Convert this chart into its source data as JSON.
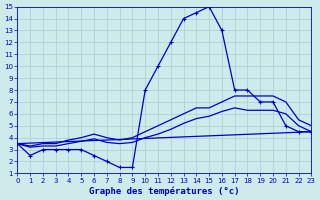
{
  "xlabel": "Graphe des températures (°c)",
  "background_color": "#ceeaea",
  "grid_color": "#aacccc",
  "line_color": "#0000cc",
  "xlim": [
    0,
    23
  ],
  "ylim": [
    1,
    15
  ],
  "xticks": [
    0,
    1,
    2,
    3,
    4,
    5,
    6,
    7,
    8,
    9,
    10,
    11,
    12,
    13,
    14,
    15,
    16,
    17,
    18,
    19,
    20,
    21,
    22,
    23
  ],
  "yticks": [
    1,
    2,
    3,
    4,
    5,
    6,
    7,
    8,
    9,
    10,
    11,
    12,
    13,
    14,
    15
  ],
  "series": [
    {
      "x": [
        0,
        1,
        2,
        3,
        4,
        5,
        6,
        7,
        8,
        9,
        10,
        11,
        12,
        13,
        14,
        15,
        16,
        17,
        18,
        19,
        20,
        21,
        22,
        23
      ],
      "y": [
        3.5,
        2.5,
        3,
        3,
        3,
        3,
        2.5,
        2,
        1.5,
        1.5,
        8,
        10,
        12,
        14,
        14.5,
        15,
        13,
        8,
        8,
        7,
        7,
        5,
        4.5,
        4.5
      ],
      "marker": true
    },
    {
      "x": [
        0,
        1,
        2,
        3,
        4,
        5,
        6,
        7,
        8,
        9,
        10,
        11,
        12,
        13,
        14,
        15,
        16,
        17,
        18,
        19,
        20,
        21,
        22,
        23
      ],
      "y": [
        3.5,
        3.3,
        3.5,
        3.5,
        3.8,
        4.0,
        4.3,
        4.0,
        3.8,
        4.0,
        4.5,
        5.0,
        5.5,
        6.0,
        6.5,
        6.5,
        7.0,
        7.5,
        7.5,
        7.5,
        7.5,
        7.0,
        5.5,
        5.0
      ],
      "marker": false
    },
    {
      "x": [
        0,
        1,
        2,
        3,
        4,
        5,
        6,
        7,
        8,
        9,
        10,
        11,
        12,
        13,
        14,
        15,
        16,
        17,
        18,
        19,
        20,
        21,
        22,
        23
      ],
      "y": [
        3.5,
        3.2,
        3.3,
        3.3,
        3.5,
        3.7,
        3.9,
        3.6,
        3.5,
        3.6,
        4.0,
        4.3,
        4.7,
        5.2,
        5.6,
        5.8,
        6.2,
        6.5,
        6.3,
        6.3,
        6.3,
        6.0,
        5.0,
        4.5
      ],
      "marker": false
    },
    {
      "x": [
        0,
        23
      ],
      "y": [
        3.5,
        4.5
      ],
      "marker": false
    }
  ]
}
